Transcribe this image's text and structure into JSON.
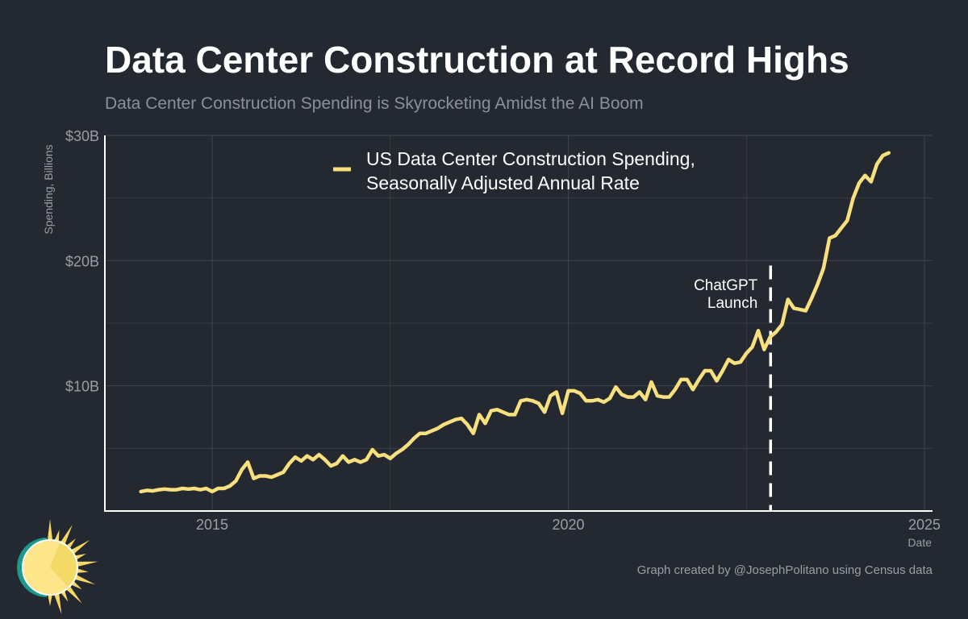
{
  "chart_data": {
    "type": "line",
    "title": "Data Center Construction at Record Highs",
    "subtitle": "Data Center Construction Spending is Skyrocketing Amidst the AI Boom",
    "xlabel": "Date",
    "ylabel": "Spending, Billions",
    "xlim": [
      2013.8,
      2025.2
    ],
    "ylim": [
      0,
      30
    ],
    "x_ticks": [
      2015,
      2020,
      2025
    ],
    "x_tick_labels": [
      "2015",
      "2020",
      "2025"
    ],
    "y_ticks": [
      10,
      20,
      30
    ],
    "y_tick_labels": [
      "$10B",
      "$20B",
      "$30B"
    ],
    "grid": true,
    "legend_position": "top-center",
    "start_month": "2014-01",
    "frequency": "monthly",
    "series": [
      {
        "name": "US Data Center Construction Spending, Seasonally Adjusted Annual Rate",
        "legend_lines": [
          "US Data Center Construction Spending,",
          "Seasonally Adjusted Annual Rate"
        ],
        "color": "#f9e07f",
        "values": [
          1.55,
          1.65,
          1.6,
          1.7,
          1.75,
          1.7,
          1.7,
          1.8,
          1.75,
          1.8,
          1.7,
          1.8,
          1.55,
          1.8,
          1.8,
          2.0,
          2.4,
          3.3,
          3.9,
          2.6,
          2.8,
          2.8,
          2.7,
          2.9,
          3.1,
          3.8,
          4.3,
          4.0,
          4.4,
          4.1,
          4.5,
          4.1,
          3.6,
          3.8,
          4.4,
          3.9,
          4.1,
          3.9,
          4.1,
          4.9,
          4.4,
          4.5,
          4.2,
          4.6,
          4.9,
          5.3,
          5.8,
          6.2,
          6.2,
          6.4,
          6.6,
          6.9,
          7.1,
          7.3,
          7.4,
          6.9,
          6.2,
          7.7,
          7.0,
          8.0,
          8.1,
          7.9,
          7.7,
          7.7,
          8.8,
          8.9,
          8.8,
          8.6,
          7.9,
          9.2,
          9.5,
          7.8,
          9.6,
          9.6,
          9.4,
          8.8,
          8.8,
          8.9,
          8.7,
          9.0,
          9.9,
          9.3,
          9.1,
          9.1,
          9.5,
          8.9,
          10.3,
          9.2,
          9.1,
          9.1,
          9.7,
          10.5,
          10.5,
          9.7,
          10.5,
          11.2,
          11.2,
          10.4,
          11.2,
          12.1,
          11.8,
          11.9,
          12.6,
          13.1,
          14.4,
          12.9,
          13.9,
          14.3,
          14.9,
          16.9,
          16.2,
          16.1,
          16.0,
          17.0,
          18.1,
          19.4,
          21.8,
          22.0,
          22.6,
          23.2,
          25.0,
          26.2,
          26.8,
          26.3,
          27.7,
          28.4,
          28.6
        ]
      }
    ],
    "annotations": [
      {
        "label_lines": [
          "ChatGPT",
          "Launch"
        ],
        "x": 2022.84,
        "style": "dashed-vertical",
        "color": "#ffffff"
      }
    ],
    "credit": "Graph created by @JosephPolitano using Census data",
    "background": "#242830"
  }
}
